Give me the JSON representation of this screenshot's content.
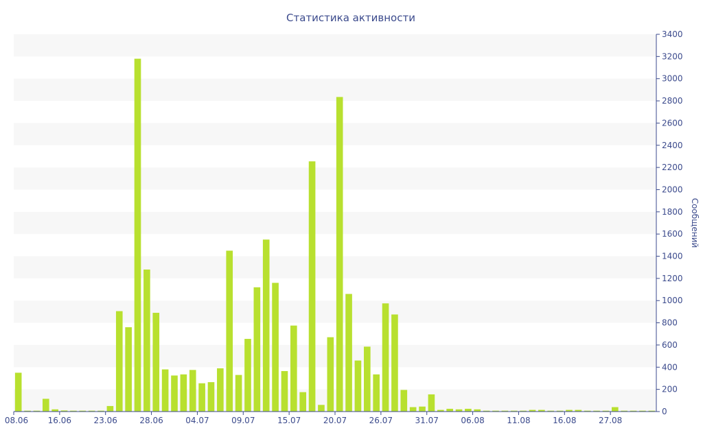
{
  "chart_data": {
    "type": "bar",
    "title": "Статистика активности",
    "xlabel": "",
    "ylabel": "Сообщений",
    "ylim": [
      0,
      3400
    ],
    "y_axis_position": "right",
    "y_ticks": [
      0,
      200,
      400,
      600,
      800,
      1000,
      1200,
      1400,
      1600,
      1800,
      2000,
      2200,
      2400,
      2600,
      2800,
      3000,
      3200,
      3400
    ],
    "x_tick_labels": [
      "08.06",
      "16.06",
      "23.06",
      "28.06",
      "04.07",
      "09.07",
      "15.07",
      "20.07",
      "26.07",
      "31.07",
      "06.08",
      "11.08",
      "16.08",
      "27.08"
    ],
    "x_tick_bar_index": [
      0,
      5,
      10,
      15,
      20,
      25,
      30,
      35,
      40,
      45,
      50,
      55,
      60,
      65
    ],
    "grid": "alternating horizontal bands",
    "legend": "none",
    "colors": {
      "bar": "#b8e02f",
      "text": "#3b4a8c",
      "band": "#f7f7f7"
    },
    "values": [
      350,
      8,
      8,
      115,
      20,
      10,
      8,
      8,
      8,
      8,
      50,
      905,
      760,
      3180,
      1280,
      890,
      380,
      325,
      335,
      375,
      255,
      265,
      390,
      1450,
      330,
      655,
      1120,
      1550,
      1160,
      365,
      775,
      175,
      2255,
      60,
      670,
      2835,
      1060,
      460,
      585,
      335,
      975,
      875,
      195,
      40,
      45,
      155,
      15,
      25,
      20,
      25,
      20,
      8,
      8,
      8,
      8,
      8,
      15,
      15,
      8,
      8,
      15,
      15,
      8,
      8,
      8,
      40,
      8,
      8,
      8,
      8
    ]
  }
}
